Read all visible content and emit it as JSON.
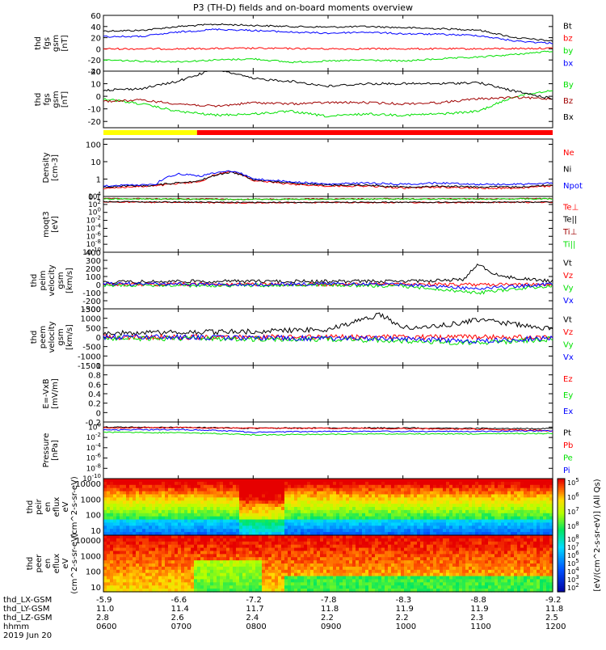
{
  "title": "P3 (TH-D) fields and on-board moments overview",
  "colors": {
    "black": "#000000",
    "red": "#ff0000",
    "green": "#00e000",
    "blue": "#0000ff",
    "darkred": "#a00000",
    "yellow": "#ffff00"
  },
  "chart_data": [
    {
      "type": "line",
      "ylabel": "thd fgs gsm [nT]",
      "ylim": [
        -40,
        60
      ],
      "yticks": [
        -40,
        -20,
        0,
        20,
        40,
        60
      ],
      "series": [
        {
          "name": "Bt",
          "color": "#000000",
          "x": [
            6.0,
            6.5,
            7.0,
            7.5,
            8.0,
            8.5,
            9.0,
            9.5,
            10.0,
            10.5,
            11.0,
            11.5,
            12.0
          ],
          "values": [
            32,
            33,
            40,
            44,
            42,
            40,
            39,
            40,
            38,
            36,
            34,
            20,
            14
          ]
        },
        {
          "name": "bz",
          "color": "#ff0000",
          "x": [
            6.0,
            7.0,
            8.0,
            9.0,
            10.0,
            11.0,
            12.0
          ],
          "values": [
            0,
            0,
            1,
            0,
            0,
            0,
            1
          ]
        },
        {
          "name": "by",
          "color": "#00e000",
          "x": [
            6.0,
            6.5,
            7.0,
            7.5,
            8.0,
            8.5,
            9.0,
            9.5,
            10.0,
            10.5,
            11.0,
            11.5,
            12.0
          ],
          "values": [
            -20,
            -22,
            -23,
            -20,
            -18,
            -24,
            -22,
            -20,
            -22,
            -18,
            -15,
            -10,
            -4
          ]
        },
        {
          "name": "bx",
          "color": "#0000ff",
          "x": [
            6.0,
            6.5,
            7.0,
            7.5,
            8.0,
            8.5,
            9.0,
            9.5,
            10.0,
            10.5,
            11.0,
            11.5,
            12.0
          ],
          "values": [
            22,
            22,
            30,
            35,
            33,
            30,
            28,
            30,
            27,
            26,
            24,
            14,
            10
          ]
        }
      ]
    },
    {
      "type": "line",
      "ylabel": "thd fgs gsm [nT]",
      "ylim": [
        -25,
        20
      ],
      "yticks": [
        -20,
        -10,
        0,
        10,
        20
      ],
      "series": [
        {
          "name": "By",
          "color": "#00e000",
          "x": [
            6.0,
            6.5,
            7.0,
            7.5,
            8.0,
            8.5,
            9.0,
            9.5,
            10.0,
            10.5,
            11.0,
            11.5,
            12.0
          ],
          "values": [
            -2,
            -6,
            -12,
            -15,
            -14,
            -12,
            -16,
            -14,
            -15,
            -14,
            -12,
            0,
            5
          ]
        },
        {
          "name": "Bz",
          "color": "#a00000",
          "x": [
            6.0,
            6.5,
            7.0,
            7.5,
            8.0,
            8.5,
            9.0,
            9.5,
            10.0,
            10.5,
            11.0,
            11.5,
            12.0
          ],
          "values": [
            -4,
            -3,
            -6,
            -8,
            -5,
            -6,
            -5,
            -5,
            -6,
            -5,
            -2,
            -1,
            -2
          ]
        },
        {
          "name": "Bx",
          "color": "#000000",
          "x": [
            6.0,
            6.5,
            7.0,
            7.5,
            8.0,
            8.5,
            9.0,
            9.5,
            10.0,
            10.5,
            11.0,
            11.5,
            12.0
          ],
          "values": [
            5,
            6,
            12,
            22,
            14,
            12,
            8,
            10,
            10,
            10,
            11,
            4,
            -2
          ]
        }
      ]
    },
    {
      "type": "line",
      "ylabel": "Density [cm-3]",
      "yscale": "log",
      "ylim": [
        0.1,
        200
      ],
      "yticks": [
        0.1,
        1.0,
        10.0,
        100.0
      ],
      "series": [
        {
          "name": "Ne",
          "color": "#ff0000",
          "x": [
            6.0,
            6.7,
            7.3,
            7.7,
            8.0,
            8.5,
            9.0,
            9.5,
            10.0,
            10.5,
            11.0,
            11.5,
            12.0
          ],
          "values": [
            0.3,
            0.4,
            0.7,
            2.8,
            0.8,
            0.5,
            0.4,
            0.4,
            0.3,
            0.35,
            0.3,
            0.3,
            0.4
          ]
        },
        {
          "name": "Ni",
          "color": "#000000",
          "x": [
            6.0,
            6.7,
            7.3,
            7.7,
            8.0,
            8.5,
            9.0,
            9.5,
            10.0,
            10.5,
            11.0,
            11.5,
            12.0
          ],
          "values": [
            0.35,
            0.45,
            0.8,
            2.5,
            0.9,
            0.6,
            0.45,
            0.45,
            0.35,
            0.4,
            0.35,
            0.35,
            0.45
          ]
        },
        {
          "name": "Npot",
          "color": "#0000ff",
          "x": [
            6.0,
            6.7,
            7.0,
            7.3,
            7.7,
            8.0,
            8.5,
            9.0,
            9.5,
            10.0,
            10.5,
            11.0,
            11.5,
            12.0
          ],
          "values": [
            0.4,
            0.5,
            2.0,
            1.5,
            3.0,
            1.0,
            0.7,
            0.5,
            0.6,
            0.5,
            0.6,
            0.5,
            0.5,
            0.6
          ]
        }
      ]
    },
    {
      "type": "line",
      "ylabel": "moqt3 [eV]",
      "yscale": "log",
      "ylim": [
        1e-10,
        10000
      ],
      "yticks": [
        1e-10,
        1e-08,
        1e-06,
        0.0001,
        0.01,
        1.0,
        100.0,
        10000.0
      ],
      "ytick_labels": [
        "10^-10",
        "10^-8",
        "10^-6",
        "10^-4",
        "10^-2",
        "10^0",
        "10^2",
        "10^4"
      ],
      "series": [
        {
          "name": "Te⊥",
          "color": "#ff0000",
          "x": [
            6.0,
            7.0,
            8.0,
            9.0,
            10.0,
            11.0,
            12.0
          ],
          "values": [
            400,
            300,
            250,
            300,
            300,
            300,
            350
          ]
        },
        {
          "name": "Te||",
          "color": "#000000",
          "x": [
            6.0,
            7.0,
            8.0,
            9.0,
            10.0,
            11.0,
            12.0
          ],
          "values": [
            500,
            400,
            300,
            350,
            350,
            350,
            400
          ]
        },
        {
          "name": "Ti⊥",
          "color": "#a00000",
          "x": [
            6.0,
            7.0,
            8.0,
            9.0,
            10.0,
            11.0,
            12.0
          ],
          "values": [
            3000,
            2500,
            2000,
            2500,
            2500,
            2500,
            3000
          ]
        },
        {
          "name": "Ti||",
          "color": "#00e000",
          "x": [
            6.0,
            7.0,
            8.0,
            9.0,
            10.0,
            11.0,
            12.0
          ],
          "values": [
            2500,
            2000,
            1800,
            2000,
            2200,
            2200,
            2500
          ]
        }
      ]
    },
    {
      "type": "line",
      "ylabel": "thd peim velocity gsm [km/s]",
      "ylim": [
        -300,
        400
      ],
      "yticks": [
        -300,
        -200,
        -100,
        0,
        100,
        200,
        300,
        400
      ],
      "series": [
        {
          "name": "Vt",
          "color": "#000000",
          "x": [
            6.0,
            7.0,
            8.0,
            9.0,
            10.0,
            10.8,
            11.0,
            11.3,
            12.0
          ],
          "values": [
            30,
            40,
            40,
            40,
            40,
            60,
            250,
            100,
            40
          ]
        },
        {
          "name": "Vz",
          "color": "#ff0000",
          "x": [
            6.0,
            7.0,
            8.0,
            9.0,
            10.0,
            11.0,
            12.0
          ],
          "values": [
            0,
            5,
            0,
            0,
            5,
            0,
            0
          ]
        },
        {
          "name": "Vy",
          "color": "#00e000",
          "x": [
            6.0,
            7.0,
            8.0,
            9.0,
            10.0,
            11.0,
            12.0
          ],
          "values": [
            -5,
            -10,
            -10,
            -5,
            -20,
            -100,
            -10
          ]
        },
        {
          "name": "Vx",
          "color": "#0000ff",
          "x": [
            6.0,
            7.0,
            8.0,
            9.0,
            10.0,
            11.0,
            12.0
          ],
          "values": [
            10,
            5,
            0,
            10,
            0,
            -50,
            5
          ]
        }
      ]
    },
    {
      "type": "line",
      "ylabel": "thd peem velocity gsm [km/s]",
      "ylim": [
        -1500,
        1500
      ],
      "yticks": [
        -1500,
        -1000,
        -500,
        0,
        500,
        1000,
        1500
      ],
      "series": [
        {
          "name": "Vt",
          "color": "#000000",
          "x": [
            6.0,
            7.0,
            8.0,
            9.0,
            9.7,
            10.0,
            10.5,
            11.0,
            11.5,
            12.0
          ],
          "values": [
            200,
            250,
            300,
            400,
            1200,
            500,
            600,
            900,
            700,
            400
          ]
        },
        {
          "name": "Vz",
          "color": "#ff0000",
          "x": [
            6.0,
            7.0,
            8.0,
            9.0,
            10.0,
            11.0,
            12.0
          ],
          "values": [
            0,
            0,
            0,
            0,
            0,
            0,
            0
          ]
        },
        {
          "name": "Vy",
          "color": "#00e000",
          "x": [
            6.0,
            7.0,
            8.0,
            9.0,
            10.0,
            11.0,
            12.0
          ],
          "values": [
            -50,
            -80,
            -100,
            -100,
            -200,
            -300,
            -100
          ]
        },
        {
          "name": "Vx",
          "color": "#0000ff",
          "x": [
            6.0,
            7.0,
            8.0,
            9.0,
            10.0,
            11.0,
            12.0
          ],
          "values": [
            0,
            0,
            -50,
            -50,
            -100,
            -200,
            -50
          ]
        }
      ]
    },
    {
      "type": "line",
      "ylabel": "E=-VxB [mV/m]",
      "ylim": [
        -0.2,
        1.0
      ],
      "yticks": [
        -0.2,
        0.0,
        0.2,
        0.4,
        0.6,
        0.8,
        1.0
      ],
      "series": [
        {
          "name": "Ez",
          "color": "#ff0000",
          "x": [],
          "values": []
        },
        {
          "name": "Ey",
          "color": "#00e000",
          "x": [],
          "values": []
        },
        {
          "name": "Ex",
          "color": "#0000ff",
          "x": [],
          "values": []
        }
      ]
    },
    {
      "type": "line",
      "ylabel": "Pressure [nPa]",
      "yscale": "log",
      "ylim": [
        1e-10,
        10
      ],
      "yticks": [
        1e-10,
        1e-08,
        1e-06,
        0.0001,
        0.01,
        1.0
      ],
      "ytick_labels": [
        "10^-10",
        "10^-8",
        "10^-6",
        "10^-4",
        "10^-2",
        "10^0"
      ],
      "series": [
        {
          "name": "Pt",
          "color": "#000000",
          "x": [
            6.0,
            7.0,
            8.0,
            9.0,
            10.0,
            11.0,
            12.0
          ],
          "values": [
            1.0,
            0.9,
            0.6,
            0.7,
            0.7,
            0.6,
            0.5
          ]
        },
        {
          "name": "Pb",
          "color": "#ff0000",
          "x": [
            6.0,
            7.0,
            8.0,
            9.0,
            10.0,
            11.0,
            12.0
          ],
          "values": [
            0.7,
            0.8,
            0.6,
            0.6,
            0.5,
            0.4,
            0.2
          ]
        },
        {
          "name": "Pe",
          "color": "#00e000",
          "x": [
            6.0,
            7.0,
            8.0,
            9.0,
            10.0,
            11.0,
            12.0
          ],
          "values": [
            0.1,
            0.08,
            0.03,
            0.04,
            0.05,
            0.05,
            0.06
          ]
        },
        {
          "name": "Pi",
          "color": "#0000ff",
          "x": [
            6.0,
            7.0,
            8.0,
            9.0,
            10.0,
            11.0,
            12.0
          ],
          "values": [
            0.3,
            0.35,
            0.1,
            0.15,
            0.15,
            0.15,
            0.2
          ]
        }
      ]
    },
    {
      "type": "heatmap",
      "ylabel": "thd peir en eflux eV (cm^2-s-sr-eV)",
      "yscale": "log",
      "ylim": [
        5,
        20000
      ],
      "yticks": [
        10,
        100,
        1000,
        10000
      ],
      "zscale": "log",
      "zlim": [
        100000,
        100000000
      ]
    },
    {
      "type": "heatmap",
      "ylabel": "thd peer en eflux eV (cm^2-s-sr-eV)",
      "yscale": "log",
      "ylim": [
        5,
        20000
      ],
      "yticks": [
        10,
        100,
        1000,
        10000
      ],
      "zscale": "log",
      "zlim": [
        100,
        100000000
      ]
    }
  ],
  "colorbar": {
    "label": "[eV/(cm^2-s-sr-eV)] (All Qs)",
    "top_ticks": [
      "10^5",
      "10^6",
      "10^7",
      "10^8"
    ],
    "bottom_ticks": [
      "10^2",
      "10^3",
      "10^4",
      "10^5",
      "10^6",
      "10^7",
      "10^8"
    ]
  },
  "ephemeris": {
    "row_labels": [
      "thd_LX-GSM",
      "thd_LY-GSM",
      "thd_LZ-GSM",
      "hhmm",
      "2019 Jun 20"
    ],
    "columns": [
      {
        "x": "-5.9",
        "y": "11.0",
        "z": "2.8",
        "t": "0600"
      },
      {
        "x": "-6.6",
        "y": "11.4",
        "z": "2.6",
        "t": "0700"
      },
      {
        "x": "-7.2",
        "y": "11.7",
        "z": "2.4",
        "t": "0800"
      },
      {
        "x": "-7.8",
        "y": "11.8",
        "z": "2.2",
        "t": "0900"
      },
      {
        "x": "-8.3",
        "y": "11.9",
        "z": "2.2",
        "t": "1000"
      },
      {
        "x": "-8.8",
        "y": "11.9",
        "z": "2.3",
        "t": "1100"
      },
      {
        "x": "-9.2",
        "y": "11.8",
        "z": "2.5",
        "t": "1200"
      }
    ]
  }
}
